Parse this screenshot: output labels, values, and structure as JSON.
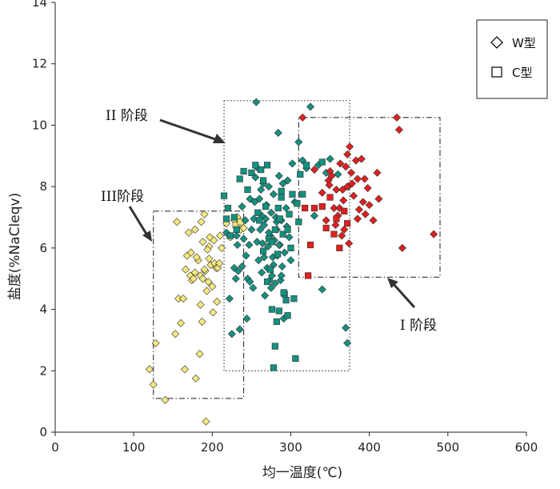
{
  "chart_data": {
    "type": "scatter",
    "title": "",
    "xlabel": "均一温度(℃)",
    "ylabel": "盐度(%NaCleqv)",
    "xlim": [
      0,
      600
    ],
    "ylim": [
      0,
      14
    ],
    "x_ticks": [
      "0",
      "100",
      "200",
      "300",
      "400",
      "500",
      "600"
    ],
    "y_ticks": [
      "0",
      "2",
      "4",
      "6",
      "8",
      "10",
      "12",
      "14"
    ],
    "grid": false,
    "legend": {
      "placement": "top-right",
      "entries": [
        {
          "label": "W型",
          "marker": "diamond"
        },
        {
          "label": "C型",
          "marker": "square"
        }
      ]
    },
    "stages": [
      {
        "label": "I 阶段",
        "x_range": [
          310,
          490
        ],
        "y_range": [
          5.05,
          10.25
        ],
        "color": "#e0201f",
        "style": "dash-dot"
      },
      {
        "label": "II 阶段",
        "x_range": [
          215,
          375
        ],
        "y_range": [
          2.0,
          10.8
        ],
        "color": "#13917f",
        "style": "dotted"
      },
      {
        "label": "III阶段",
        "x_range": [
          125,
          240
        ],
        "y_range": [
          1.1,
          7.2
        ],
        "color": "#f4e87e",
        "style": "dash-dot"
      }
    ],
    "series": [
      {
        "color": "#f4e87e",
        "diamonds": [
          [
            120,
            2.05
          ],
          [
            125,
            1.55
          ],
          [
            128,
            2.9
          ],
          [
            140,
            1.05
          ],
          [
            153,
            3.2
          ],
          [
            155,
            6.85
          ],
          [
            157,
            4.35
          ],
          [
            160,
            3.55
          ],
          [
            163,
            4.35
          ],
          [
            165,
            2.05
          ],
          [
            170,
            6.5
          ],
          [
            172,
            5.1
          ],
          [
            174,
            4.95
          ],
          [
            176,
            5.0
          ],
          [
            178,
            5.2
          ],
          [
            179,
            1.75
          ],
          [
            182,
            5.6
          ],
          [
            184,
            2.55
          ],
          [
            185,
            5.1
          ],
          [
            187,
            3.6
          ],
          [
            188,
            5.0
          ],
          [
            190,
            7.1
          ],
          [
            191,
            5.25
          ],
          [
            192,
            0.35
          ],
          [
            193,
            4.6
          ],
          [
            195,
            4.9
          ],
          [
            196,
            5.65
          ],
          [
            197,
            6.35
          ],
          [
            198,
            5.45
          ],
          [
            200,
            4.75
          ],
          [
            201,
            3.9
          ],
          [
            202,
            6.25
          ],
          [
            203,
            5.5
          ],
          [
            205,
            5.35
          ],
          [
            206,
            4.25
          ],
          [
            207,
            5.35
          ],
          [
            209,
            5.5
          ],
          [
            210,
            6.4
          ],
          [
            212,
            6.0
          ],
          [
            218,
            6.8
          ],
          [
            223,
            6.35
          ],
          [
            228,
            6.9
          ],
          [
            232,
            7.0
          ],
          [
            236,
            6.6
          ],
          [
            240,
            6.65
          ],
          [
            168,
            5.75
          ],
          [
            180,
            5.7
          ],
          [
            185,
            4.15
          ],
          [
            190,
            5.3
          ],
          [
            196,
            6.05
          ],
          [
            178,
            6.6
          ],
          [
            166,
            5.3
          ],
          [
            173,
            5.85
          ],
          [
            186,
            6.85
          ],
          [
            194,
            5.95
          ],
          [
            188,
            6.2
          ]
        ],
        "squares": [
          [
            230,
            6.75
          ],
          [
            236,
            6.85
          ]
        ]
      },
      {
        "color": "#13917f",
        "diamonds": [
          [
            218,
            6.5
          ],
          [
            222,
            4.35
          ],
          [
            225,
            3.2
          ],
          [
            228,
            5.35
          ],
          [
            230,
            5.0
          ],
          [
            232,
            6.1
          ],
          [
            233,
            5.25
          ],
          [
            235,
            3.35
          ],
          [
            238,
            7.35
          ],
          [
            240,
            6.3
          ],
          [
            242,
            6.9
          ],
          [
            244,
            3.7
          ],
          [
            245,
            5.0
          ],
          [
            247,
            6.1
          ],
          [
            248,
            4.9
          ],
          [
            250,
            6.6
          ],
          [
            252,
            4.7
          ],
          [
            253,
            6.95
          ],
          [
            254,
            7.5
          ],
          [
            255,
            8.3
          ],
          [
            256,
            10.75
          ],
          [
            257,
            6.2
          ],
          [
            258,
            8.6
          ],
          [
            260,
            7.6
          ],
          [
            261,
            6.6
          ],
          [
            262,
            7.9
          ],
          [
            263,
            5.2
          ],
          [
            264,
            6.15
          ],
          [
            265,
            8.1
          ],
          [
            266,
            5.7
          ],
          [
            267,
            4.45
          ],
          [
            268,
            6.95
          ],
          [
            269,
            7.4
          ],
          [
            270,
            5.35
          ],
          [
            271,
            6.05
          ],
          [
            272,
            8.0
          ],
          [
            273,
            4.95
          ],
          [
            274,
            6.4
          ],
          [
            275,
            7.15
          ],
          [
            276,
            5.1
          ],
          [
            277,
            5.7
          ],
          [
            278,
            7.75
          ],
          [
            279,
            6.25
          ],
          [
            280,
            4.85
          ],
          [
            281,
            7.0
          ],
          [
            282,
            6.6
          ],
          [
            283,
            5.75
          ],
          [
            284,
            9.75
          ],
          [
            285,
            8.35
          ],
          [
            286,
            6.1
          ],
          [
            287,
            4.95
          ],
          [
            288,
            6.9
          ],
          [
            289,
            5.4
          ],
          [
            290,
            8.1
          ],
          [
            291,
            3.7
          ],
          [
            292,
            5.85
          ],
          [
            294,
            7.3
          ],
          [
            296,
            8.2
          ],
          [
            298,
            6.35
          ],
          [
            300,
            5.6
          ],
          [
            302,
            8.75
          ],
          [
            305,
            7.5
          ],
          [
            310,
            9.45
          ],
          [
            315,
            8.85
          ],
          [
            320,
            8.6
          ],
          [
            325,
            10.6
          ],
          [
            330,
            7.05
          ],
          [
            335,
            8.7
          ],
          [
            340,
            4.65
          ],
          [
            345,
            8.45
          ],
          [
            350,
            8.9
          ],
          [
            360,
            8.4
          ],
          [
            370,
            3.4
          ],
          [
            372,
            2.9
          ],
          [
            282,
            6.85
          ],
          [
            285,
            6.1
          ],
          [
            278,
            5.45
          ],
          [
            266,
            6.75
          ],
          [
            272,
            6.5
          ],
          [
            259,
            5.6
          ],
          [
            263,
            7.05
          ],
          [
            248,
            7.6
          ],
          [
            243,
            5.75
          ],
          [
            238,
            5.4
          ],
          [
            231,
            6.4
          ],
          [
            275,
            4.7
          ],
          [
            288,
            5.1
          ],
          [
            295,
            6.7
          ]
        ],
        "squares": [
          [
            215,
            7.7
          ],
          [
            218,
            6.95
          ],
          [
            220,
            7.3
          ],
          [
            223,
            6.4
          ],
          [
            228,
            7.0
          ],
          [
            231,
            6.6
          ],
          [
            235,
            8.25
          ],
          [
            240,
            8.5
          ],
          [
            245,
            7.9
          ],
          [
            250,
            8.45
          ],
          [
            255,
            8.7
          ],
          [
            258,
            7.15
          ],
          [
            262,
            8.55
          ],
          [
            265,
            8.2
          ],
          [
            268,
            7.35
          ],
          [
            270,
            8.7
          ],
          [
            272,
            6.3
          ],
          [
            274,
            5.3
          ],
          [
            276,
            4.0
          ],
          [
            278,
            2.1
          ],
          [
            280,
            2.8
          ],
          [
            282,
            3.6
          ],
          [
            284,
            7.3
          ],
          [
            286,
            6.95
          ],
          [
            288,
            7.65
          ],
          [
            290,
            6.45
          ],
          [
            292,
            4.5
          ],
          [
            294,
            4.3
          ],
          [
            296,
            3.8
          ],
          [
            298,
            7.1
          ],
          [
            300,
            6.0
          ],
          [
            302,
            7.75
          ],
          [
            304,
            4.35
          ],
          [
            306,
            2.4
          ],
          [
            308,
            7.45
          ],
          [
            310,
            6.85
          ],
          [
            312,
            8.4
          ],
          [
            315,
            7.75
          ],
          [
            320,
            8.7
          ],
          [
            340,
            8.8
          ],
          [
            260,
            6.9
          ],
          [
            265,
            5.9
          ],
          [
            280,
            6.6
          ],
          [
            270,
            4.9
          ],
          [
            285,
            3.95
          ],
          [
            291,
            4.55
          ],
          [
            296,
            6.6
          ],
          [
            276,
            6.2
          ],
          [
            283,
            5.8
          ],
          [
            288,
            7.85
          ]
        ]
      },
      {
        "color": "#e0201f",
        "diamonds": [
          [
            315,
            10.25
          ],
          [
            330,
            8.55
          ],
          [
            340,
            7.8
          ],
          [
            345,
            6.9
          ],
          [
            348,
            8.2
          ],
          [
            350,
            8.5
          ],
          [
            352,
            8.35
          ],
          [
            355,
            7.3
          ],
          [
            358,
            7.9
          ],
          [
            360,
            7.05
          ],
          [
            362,
            7.3
          ],
          [
            365,
            6.4
          ],
          [
            367,
            7.55
          ],
          [
            370,
            8.65
          ],
          [
            372,
            9.05
          ],
          [
            373,
            8.0
          ],
          [
            374,
            6.15
          ],
          [
            375,
            9.3
          ],
          [
            378,
            8.1
          ],
          [
            380,
            7.7
          ],
          [
            383,
            8.85
          ],
          [
            385,
            8.25
          ],
          [
            387,
            7.25
          ],
          [
            390,
            8.9
          ],
          [
            392,
            7.5
          ],
          [
            395,
            7.1
          ],
          [
            398,
            7.95
          ],
          [
            400,
            7.4
          ],
          [
            405,
            6.9
          ],
          [
            410,
            8.45
          ],
          [
            412,
            7.6
          ],
          [
            435,
            10.25
          ],
          [
            438,
            9.85
          ],
          [
            442,
            6.0
          ],
          [
            482,
            6.45
          ],
          [
            368,
            6.6
          ],
          [
            363,
            8.75
          ],
          [
            377,
            8.45
          ],
          [
            394,
            8.25
          ],
          [
            385,
            6.95
          ],
          [
            372,
            8.0
          ],
          [
            357,
            6.75
          ],
          [
            349,
            8.05
          ],
          [
            366,
            7.9
          ]
        ],
        "squares": [
          [
            318,
            7.3
          ],
          [
            322,
            5.1
          ],
          [
            325,
            6.1
          ],
          [
            330,
            7.3
          ],
          [
            340,
            7.35
          ],
          [
            345,
            6.65
          ],
          [
            350,
            7.65
          ],
          [
            355,
            6.45
          ],
          [
            358,
            6.95
          ],
          [
            362,
            6.0
          ],
          [
            368,
            7.2
          ],
          [
            372,
            6.8
          ]
        ]
      }
    ],
    "annotations": [
      {
        "text": "II 阶段"
      },
      {
        "text": "III阶段"
      },
      {
        "text": "I 阶段"
      }
    ]
  }
}
